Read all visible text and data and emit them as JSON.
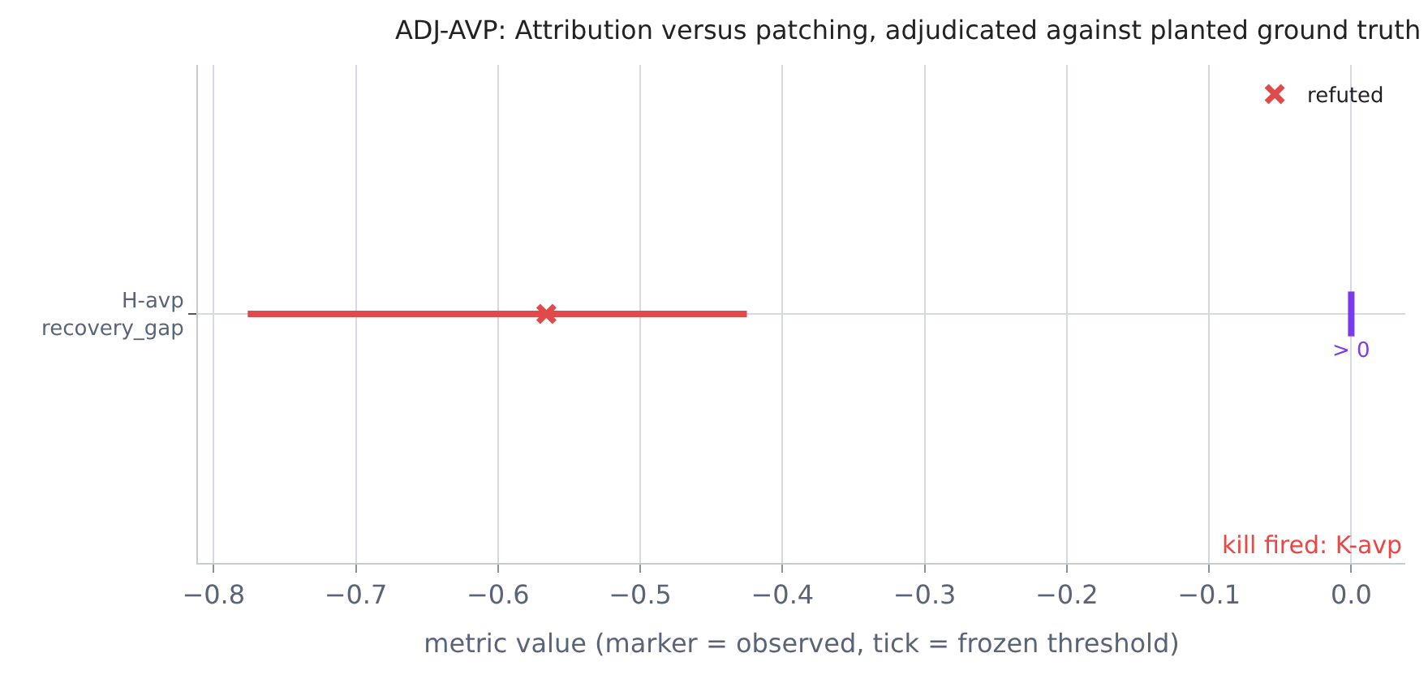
{
  "chart_data": {
    "type": "scatter",
    "title": "ADJ-AVP: Attribution versus patching, adjudicated against planted ground truth",
    "xlabel": "metric value (marker = observed, tick = frozen threshold)",
    "orientation": "horizontal",
    "categories": [
      "H-avp\nrecovery_gap"
    ],
    "series": [
      {
        "name": "refuted",
        "color": "#e04a4a",
        "values": [
          -0.566
        ],
        "errors": [
          [
            -0.776,
            -0.425
          ]
        ]
      }
    ],
    "marker": "cross",
    "xlim": [
      -0.811,
      0.038
    ],
    "xticks": [
      {
        "value": -0.8,
        "label": "−0.8"
      },
      {
        "value": -0.7,
        "label": "−0.7"
      },
      {
        "value": -0.6,
        "label": "−0.6"
      },
      {
        "value": -0.5,
        "label": "−0.5"
      },
      {
        "value": -0.4,
        "label": "−0.4"
      },
      {
        "value": -0.3,
        "label": "−0.3"
      },
      {
        "value": -0.2,
        "label": "−0.2"
      },
      {
        "value": -0.1,
        "label": "−0.1"
      },
      {
        "value": 0,
        "label": "0.0"
      }
    ],
    "ref_lines": [
      {
        "axis": "x",
        "value": 0,
        "label": "> 0",
        "color": "#7c3aed"
      }
    ],
    "annotations": [
      "kill fired: K-avp"
    ],
    "grid": true,
    "legend": "top right"
  }
}
